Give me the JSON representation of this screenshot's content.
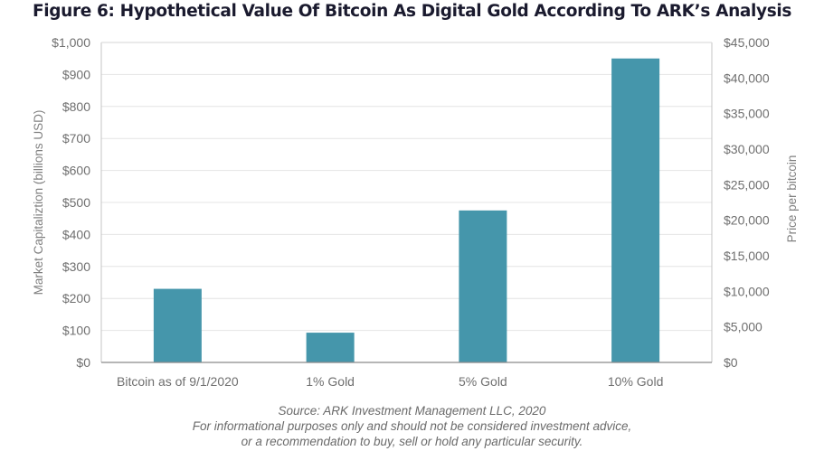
{
  "chart_data": {
    "type": "bar",
    "title": "Figure 6: Hypothetical Value Of Bitcoin As Digital Gold According To ARK’s Analysis",
    "categories": [
      "Bitcoin as of 9/1/2020",
      "1% Gold",
      "5% Gold",
      "10% Gold"
    ],
    "series": [
      {
        "name": "Market Capitalization (billions USD)",
        "values": [
          230,
          93,
          475,
          950
        ],
        "color": "#4596ab"
      }
    ],
    "ylabel": "Market Capitaliztion (billions USD)",
    "ylim": [
      0,
      1000
    ],
    "yticks": [
      0,
      100,
      200,
      300,
      400,
      500,
      600,
      700,
      800,
      900,
      1000
    ],
    "ytick_labels": [
      "$0",
      "$100",
      "$200",
      "$300",
      "$400",
      "$500",
      "$600",
      "$700",
      "$800",
      "$900",
      "$1,000"
    ],
    "y2label": "Price per bitcoin",
    "y2lim": [
      0,
      45000
    ],
    "y2ticks": [
      0,
      5000,
      10000,
      15000,
      20000,
      25000,
      30000,
      35000,
      40000,
      45000
    ],
    "y2tick_labels": [
      "$0",
      "$5,000",
      "$10,000",
      "$15,000",
      "$20,000",
      "$25,000",
      "$30,000",
      "$35,000",
      "$40,000",
      "$45,000"
    ],
    "xlabel": "",
    "grid": true,
    "legend": "none",
    "colors": {
      "bar": "#4596ab",
      "grid": "#e4e4e4",
      "axis": "#8a8a8a",
      "text": "#6f6f6f"
    }
  },
  "footer": {
    "source": "Source: ARK Investment Management LLC, 2020",
    "disclaimer_line1": "For informational purposes only and should not be considered investment advice,",
    "disclaimer_line2": "or a recommendation to buy, sell or hold any particular security."
  }
}
